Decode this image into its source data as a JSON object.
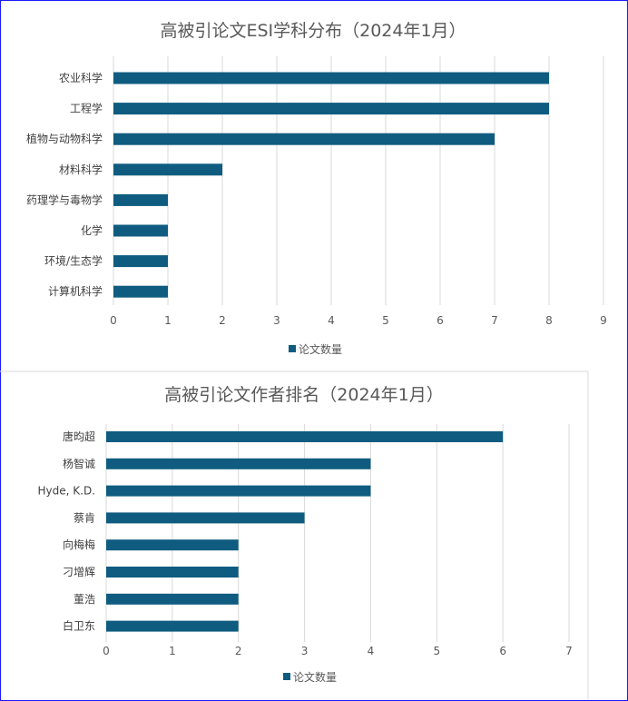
{
  "chart_data": [
    {
      "type": "bar",
      "orientation": "horizontal",
      "title": "高被引论文ESI学科分布（2024年1月）",
      "categories": [
        "农业科学",
        "工程学",
        "植物与动物科学",
        "材料科学",
        "药理学与毒物学",
        "化学",
        "环境/生态学",
        "计算机科学"
      ],
      "series": [
        {
          "name": "论文数量",
          "values": [
            8,
            8,
            7,
            2,
            1,
            1,
            1,
            1
          ],
          "color": "#0f5c80"
        }
      ],
      "xlim": [
        0,
        9
      ],
      "xticks": [
        "0",
        "1",
        "2",
        "3",
        "4",
        "5",
        "6",
        "7",
        "8",
        "9"
      ],
      "grid": true,
      "legend": "bottom"
    },
    {
      "type": "bar",
      "orientation": "horizontal",
      "title": "高被引论文作者排名（2024年1月）",
      "categories": [
        "唐昀超",
        "杨智诚",
        "Hyde, K.D.",
        "蔡肯",
        "向梅梅",
        "刁增辉",
        "董浩",
        "白卫东"
      ],
      "series": [
        {
          "name": "论文数量",
          "values": [
            6,
            4,
            4,
            3,
            2,
            2,
            2,
            2
          ],
          "color": "#0f5c80"
        }
      ],
      "xlim": [
        0,
        7
      ],
      "xticks": [
        "0",
        "1",
        "2",
        "3",
        "4",
        "5",
        "6",
        "7"
      ],
      "grid": true,
      "legend": "bottom"
    }
  ]
}
